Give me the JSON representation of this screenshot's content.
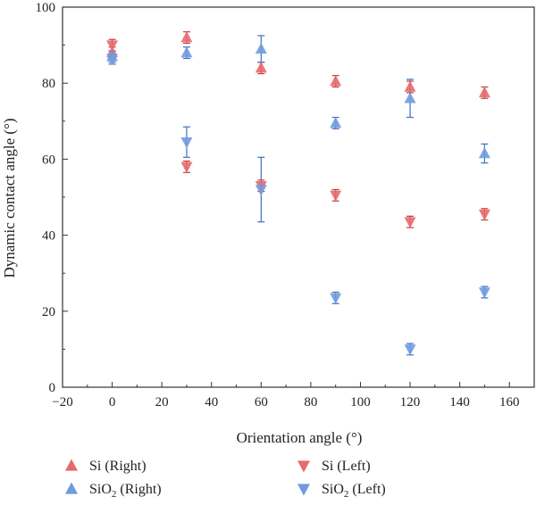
{
  "chart_data": {
    "type": "scatter",
    "xlabel": "Orientation angle (°)",
    "ylabel": "Dynamic contact angle (°)",
    "xlim": [
      -20,
      170
    ],
    "ylim": [
      0,
      100
    ],
    "xticks": [
      -20,
      0,
      20,
      40,
      60,
      80,
      100,
      120,
      140,
      160
    ],
    "xtick_labels": [
      "−20",
      "0",
      "20",
      "40",
      "60",
      "80",
      "100",
      "120",
      "140",
      "160"
    ],
    "yticks": [
      0,
      20,
      40,
      60,
      80,
      100
    ],
    "ytick_labels": [
      "0",
      "20",
      "40",
      "60",
      "80",
      "100"
    ],
    "grid": false,
    "legend_position": "bottom",
    "series": [
      {
        "name": "Si (Right)",
        "name_main": "Si",
        "name_sub": "",
        "name_suffix": " (Right)",
        "marker": "triangle-up",
        "color": "#e8696b",
        "error_color": "#c23b3e",
        "x": [
          0,
          30,
          60,
          90,
          120,
          150
        ],
        "y": [
          88,
          92,
          84,
          80.5,
          79,
          77.5
        ],
        "error": [
          1.5,
          1.5,
          1.5,
          1.5,
          1.5,
          1.5
        ]
      },
      {
        "name": "Si (Left)",
        "name_main": "Si",
        "name_sub": "",
        "name_suffix": " (Left)",
        "marker": "triangle-down",
        "color": "#e8696b",
        "error_color": "#c23b3e",
        "x": [
          0,
          30,
          60,
          90,
          120,
          150
        ],
        "y": [
          90,
          58,
          53,
          50.5,
          43.5,
          45.5
        ],
        "error": [
          1.5,
          1.5,
          1.5,
          1.5,
          1.5,
          1.5
        ]
      },
      {
        "name": "SiO2 (Right)",
        "name_main": "SiO",
        "name_sub": "2",
        "name_suffix": " (Right)",
        "marker": "triangle-up",
        "color": "#6f9be0",
        "error_color": "#3f6fc0",
        "x": [
          0,
          30,
          60,
          90,
          120,
          150
        ],
        "y": [
          87,
          88,
          89,
          69.5,
          76,
          61.5
        ],
        "error": [
          1.5,
          1.5,
          3.5,
          1.5,
          5,
          2.5
        ]
      },
      {
        "name": "SiO2 (Left)",
        "name_main": "SiO",
        "name_sub": "2",
        "name_suffix": " (Left)",
        "marker": "triangle-down",
        "color": "#6f9be0",
        "error_color": "#3f6fc0",
        "x": [
          0,
          30,
          60,
          90,
          120,
          150
        ],
        "y": [
          86.5,
          64.5,
          52,
          23.5,
          10,
          25
        ],
        "error": [
          1.5,
          4,
          8.5,
          1.5,
          1.5,
          1.5
        ]
      }
    ]
  }
}
